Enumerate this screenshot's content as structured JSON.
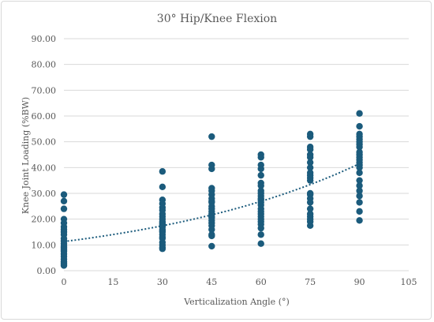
{
  "chart_data": {
    "type": "scatter",
    "title": "30° Hip/Knee Flexion",
    "xlabel": "Verticalization Angle (°)",
    "ylabel": "Knee Joint Loading (%BW)",
    "xlim": [
      0,
      105
    ],
    "ylim": [
      0,
      90
    ],
    "x_ticks": [
      "0",
      "15",
      "30",
      "45",
      "60",
      "75",
      "90",
      "105"
    ],
    "y_ticks": [
      "0.00",
      "10.00",
      "20.00",
      "30.00",
      "40.00",
      "50.00",
      "60.00",
      "70.00",
      "80.00",
      "90.00"
    ],
    "grid": "horizontal",
    "legend": "none",
    "colors": {
      "points": "#1b5b7c",
      "trendline": "#1b5b7c",
      "grid": "#d9d9d9",
      "text": "#595959"
    },
    "series": [
      {
        "x": [
          0,
          0,
          0,
          0,
          0,
          0,
          0,
          0,
          0,
          0,
          0,
          0,
          0,
          0,
          0,
          0,
          0,
          0,
          0,
          0,
          0,
          0,
          0,
          0,
          30,
          30,
          30,
          30,
          30,
          30,
          30,
          30,
          30,
          30,
          30,
          30,
          30,
          30,
          30,
          30,
          30,
          30,
          30,
          30,
          30,
          30,
          30,
          30,
          45,
          45,
          45,
          45,
          45,
          45,
          45,
          45,
          45,
          45,
          45,
          45,
          45,
          45,
          45,
          45,
          45,
          45,
          45,
          45,
          45,
          45,
          60,
          60,
          60,
          60,
          60,
          60,
          60,
          60,
          60,
          60,
          60,
          60,
          60,
          60,
          60,
          60,
          60,
          60,
          60,
          60,
          60,
          60,
          60,
          60,
          75,
          75,
          75,
          75,
          75,
          75,
          75,
          75,
          75,
          75,
          75,
          75,
          75,
          75,
          75,
          75,
          75,
          75,
          75,
          75,
          75,
          75,
          90,
          90,
          90,
          90,
          90,
          90,
          90,
          90,
          90,
          90,
          90,
          90,
          90,
          90,
          90,
          90,
          90,
          90,
          90,
          90,
          90,
          90,
          90
        ],
        "y": [
          29.5,
          27,
          24,
          20,
          18.5,
          17,
          16,
          15,
          14,
          12.5,
          11.5,
          10.5,
          9.5,
          9,
          8.5,
          8,
          7.5,
          6.5,
          5.5,
          4.5,
          3.5,
          3,
          2.5,
          2,
          38.5,
          32.5,
          27.5,
          26,
          24.5,
          23.5,
          22,
          21,
          20,
          19,
          18.5,
          18,
          17.5,
          17,
          16,
          15.5,
          15,
          14,
          13,
          12.5,
          11,
          10,
          9,
          8.5,
          52,
          41,
          39.5,
          32,
          31,
          29.5,
          28,
          27,
          26.5,
          25,
          24,
          23,
          22,
          21,
          20.5,
          19.5,
          18.5,
          17.5,
          16,
          14,
          13.5,
          9.5,
          45,
          44,
          41,
          39.5,
          37,
          34,
          33,
          31,
          30,
          29,
          28,
          27.5,
          26.5,
          25.5,
          24,
          23,
          22,
          21,
          20,
          19,
          18,
          16.5,
          14,
          10.5,
          53,
          52,
          48,
          47,
          45,
          44,
          42,
          40,
          38,
          37,
          36,
          35,
          30,
          29.5,
          28,
          26.5,
          24,
          22,
          21,
          20,
          19,
          17.5,
          61,
          56,
          53,
          52,
          51,
          50,
          49,
          48,
          46,
          45,
          44,
          43,
          42,
          41,
          40,
          38,
          35,
          33,
          31,
          29,
          26.5,
          23,
          19.5
        ]
      }
    ],
    "trendline": {
      "type": "exponential",
      "style": "dotted",
      "start": [
        0,
        11.3
      ],
      "end": [
        90,
        41.5
      ]
    }
  }
}
